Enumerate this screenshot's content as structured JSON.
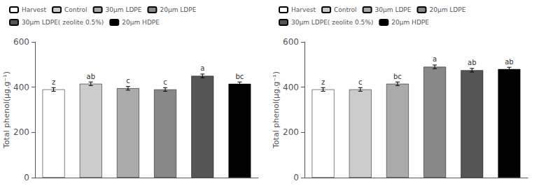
{
  "chart_data": [
    {
      "type": "bar",
      "categories": [
        "Harvest",
        "Control",
        "30μm LDPE",
        "20μm LDPE",
        "30μm LDPE( zeolite 0.5%)",
        "20μm HDPE"
      ],
      "values": [
        390,
        415,
        395,
        390,
        450,
        415
      ],
      "errors": [
        8,
        8,
        8,
        8,
        8,
        8
      ],
      "annotations": [
        "z",
        "ab",
        "c",
        "c",
        "a",
        "bc"
      ],
      "colors": [
        "white",
        "#cccccc",
        "#aaaaaa",
        "#888888",
        "#555555",
        "#000000"
      ],
      "ylabel": "Total phenol(μg.g⁻¹)",
      "ylim": [
        0,
        600
      ],
      "yticks": [
        0,
        200,
        400,
        600
      ],
      "grid": false,
      "legend": "upper left",
      "tick_labels": "y"
    },
    {
      "type": "bar",
      "categories": [
        "Harvest",
        "Control",
        "30μm LDPE",
        "20μm LDPE",
        "30μm LDPE( zeolite 0.5%)",
        "20μm HDPE"
      ],
      "values": [
        390,
        390,
        415,
        490,
        475,
        480
      ],
      "errors": [
        8,
        8,
        8,
        8,
        8,
        8
      ],
      "annotations": [
        "z",
        "c",
        "bc",
        "a",
        "ab",
        "ab"
      ],
      "colors": [
        "white",
        "#cccccc",
        "#aaaaaa",
        "#888888",
        "#555555",
        "#000000"
      ],
      "ylabel": "Total phenol(μg.g⁻¹)",
      "ylim": [
        0,
        600
      ],
      "yticks": [
        0,
        200,
        400,
        600
      ],
      "grid": false,
      "legend": "upper left",
      "tick_labels": "y"
    }
  ]
}
